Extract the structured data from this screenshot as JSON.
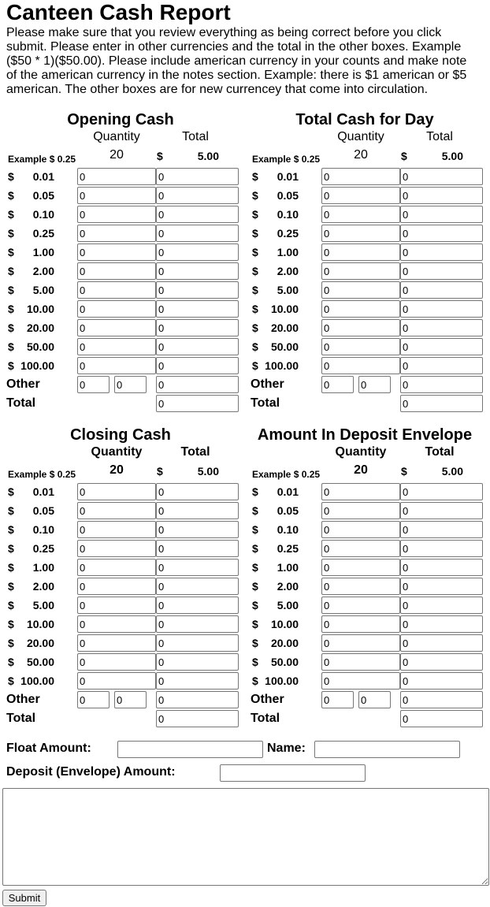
{
  "page": {
    "title": "Canteen Cash Report",
    "instructions": "Please make sure that you review everything as being correct before you click submit. Please enter in other currencies and the total in the other boxes. Example ($50 * 1)($50.00). Please include american currency in your counts and make note of the american currency in the notes section. Example: there is $1 american or $5 american. The other boxes are for new currencey that come into circulation."
  },
  "common": {
    "quantity_header": "Quantity",
    "total_header": "Total",
    "example_label": "Example $ 0.25",
    "example_quantity": "20",
    "example_dollar": "$",
    "example_total": "5.00",
    "dollar_sign": "$",
    "other_label": "Other",
    "total_label": "Total",
    "default_value": "0"
  },
  "denominations": [
    "0.01",
    "0.05",
    "0.10",
    "0.25",
    "1.00",
    "2.00",
    "5.00",
    "10.00",
    "20.00",
    "50.00",
    "100.00"
  ],
  "sections": [
    {
      "id": "opening-cash",
      "title": "Opening Cash",
      "bold_headers": false
    },
    {
      "id": "total-cash-for-day",
      "title": "Total Cash for Day",
      "bold_headers": false
    },
    {
      "id": "closing-cash",
      "title": "Closing Cash",
      "bold_headers": true
    },
    {
      "id": "amount-in-deposit-envelope",
      "title": "Amount In Deposit Envelope",
      "bold_headers": true
    }
  ],
  "form": {
    "float_label": "Float Amount:",
    "float_value": "",
    "name_label": "Name:",
    "name_value": "",
    "deposit_label": "Deposit (Envelope) Amount:",
    "deposit_value": "",
    "notes_value": "",
    "submit_label": "Submit"
  }
}
